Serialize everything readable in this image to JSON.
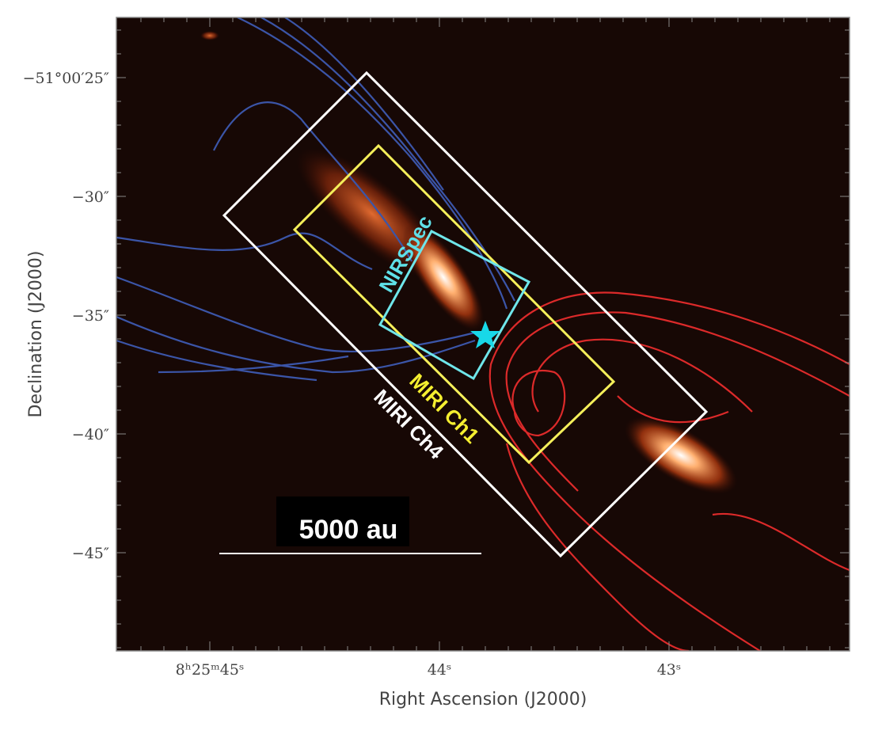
{
  "figure": {
    "y_axis": {
      "label": "Declination (J2000)",
      "ticks": [
        "−51°00′25″",
        "−30″",
        "−35″",
        "−40″",
        "−45″"
      ]
    },
    "x_axis": {
      "label": "Right Ascension (J2000)",
      "ticks": [
        "8ʰ25ᵐ45ˢ",
        "44ˢ",
        "43ˢ"
      ]
    },
    "apertures": [
      "NIRSpec",
      "MIRI Ch1",
      "MIRI Ch4"
    ],
    "scale_bar": "5000 au"
  }
}
